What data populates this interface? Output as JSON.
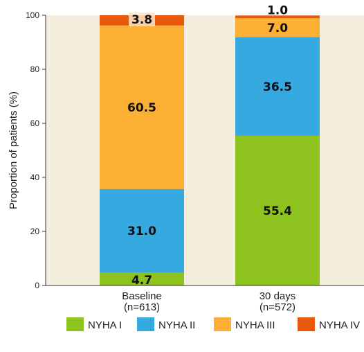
{
  "chart_data": {
    "type": "bar",
    "stacked": true,
    "categories": [
      "Baseline\n(n=613)",
      "30 days\n(n=572)"
    ],
    "category_lines": [
      [
        "Baseline",
        "(n=613)"
      ],
      [
        "30 days",
        "(n=572)"
      ]
    ],
    "series": [
      {
        "name": "NYHA I",
        "color": "#8dc21f",
        "values": [
          4.7,
          55.4
        ]
      },
      {
        "name": "NYHA II",
        "color": "#36a9e1",
        "values": [
          31.0,
          36.5
        ]
      },
      {
        "name": "NYHA III",
        "color": "#fbb034",
        "values": [
          60.5,
          7.0
        ]
      },
      {
        "name": "NYHA IV",
        "color": "#e8590c",
        "values": [
          3.8,
          1.0
        ]
      }
    ],
    "data_labels": [
      [
        "4.7",
        "55.4"
      ],
      [
        "31.0",
        "36.5"
      ],
      [
        "60.5",
        "7.0"
      ],
      [
        "3.8",
        "1.0"
      ]
    ],
    "ylabel": "Proportion of patients (%)",
    "ylim": [
      0,
      100
    ],
    "yticks": [
      0,
      20,
      40,
      60,
      80,
      100
    ],
    "ytick_labels": [
      "0",
      "20",
      "40",
      "60",
      "80",
      "100"
    ],
    "grid": false,
    "plot_background": "#f3eedd",
    "legend_position": "bottom"
  }
}
